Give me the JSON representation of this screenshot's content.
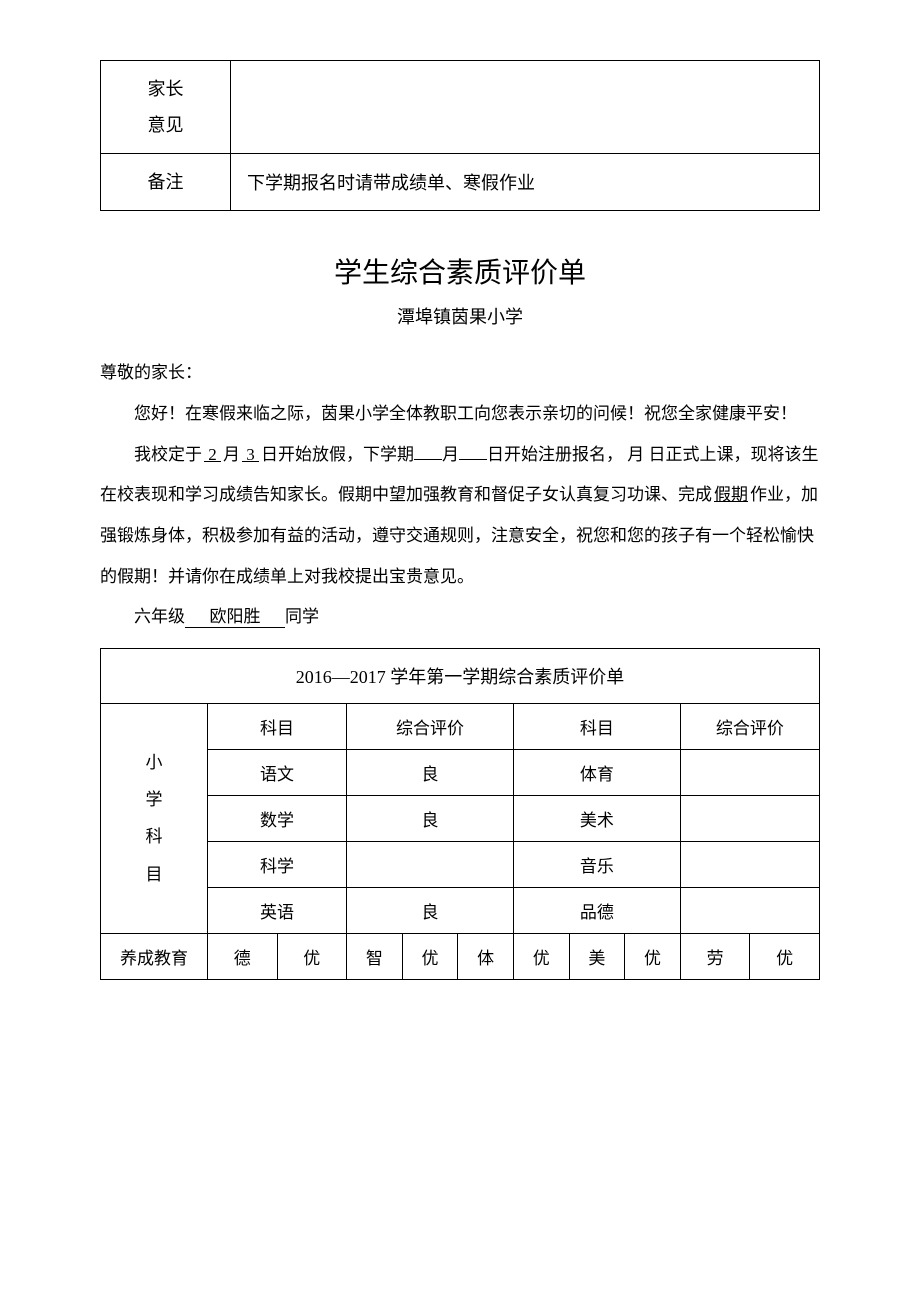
{
  "top_table": {
    "parent_opinion_label_l1": "家长",
    "parent_opinion_label_l2": "意见",
    "parent_opinion_value": "",
    "remark_label": "备注",
    "remark_value": "下学期报名时请带成绩单、寒假作业"
  },
  "title": "学生综合素质评价单",
  "subtitle": "潭埠镇茵果小学",
  "greeting": "尊敬的家长：",
  "para1": "您好！在寒假来临之际，茵果小学全体教职工向您表示亲切的问候！祝您全家健康平安！",
  "para2_pre": "我校定于",
  "month1": " 2 ",
  "month_char": "月",
  "day1": " 3 ",
  "day_char": "日",
  "para2_a": "开始放假，下学期",
  "blank_month": "",
  "para2_b": "月",
  "blank_day": "",
  "para2_c": "日开始注册报名，  月  日正式上课，现将该生在校表现和学习成绩告知家长。假期中望加强教育和督促子女认真复习功课、完成",
  "holiday_word": "假期",
  "para2_d": "作业，加强锻炼身体，积极参加有益的活动，遵守交通规则，注意安全，祝您和您的孩子有一个轻松愉快的假期！并请你在成绩单上对我校提出宝贵意见。",
  "grade_label": "六年级",
  "student_name": "欧阳胜",
  "student_suffix": "同学",
  "eval": {
    "table_title": "2016—2017 学年第一学期综合素质评价单",
    "vert_label": "小\n学\n科\n目",
    "col_subject": "科目",
    "col_eval": "综合评价",
    "subjects_left": [
      "语文",
      "数学",
      "科学",
      "英语"
    ],
    "grades_left": [
      "良",
      "良",
      "",
      "良"
    ],
    "subjects_right": [
      "体育",
      "美术",
      "音乐",
      "品德"
    ],
    "grades_right": [
      "",
      "",
      "",
      ""
    ],
    "habit_label": "养成教育",
    "habit_cols": [
      "德",
      "优",
      "智",
      "优",
      "体",
      "优",
      "美",
      "优",
      "劳",
      "优"
    ]
  },
  "colors": {
    "text": "#000000",
    "background": "#ffffff",
    "border": "#000000"
  }
}
